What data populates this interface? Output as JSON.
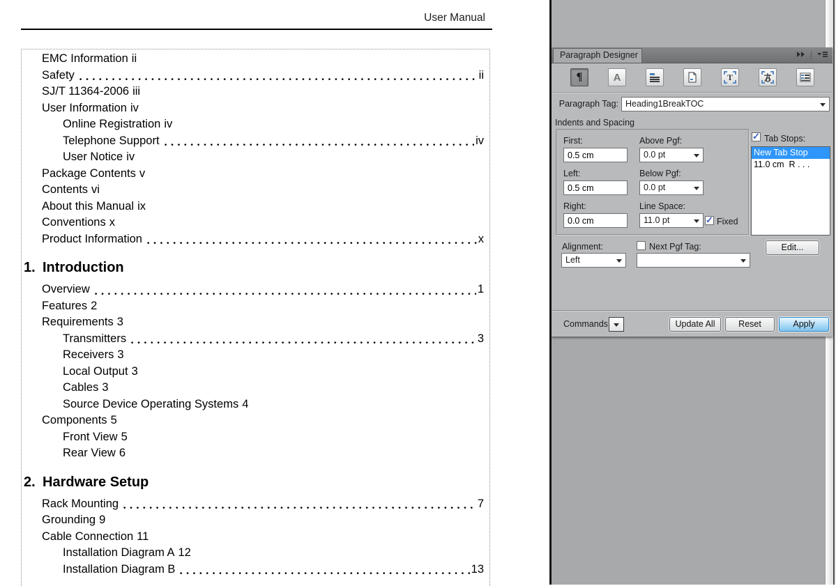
{
  "document": {
    "header_title": "User Manual",
    "toc": {
      "entries": [
        {
          "text": "EMC Information",
          "page": "ii",
          "dots": false,
          "level": 0
        },
        {
          "text": "Safety",
          "page": "ii",
          "dots": true,
          "level": 0
        },
        {
          "text": "SJ/T 11364-2006",
          "page": "iii",
          "dots": false,
          "level": 0
        },
        {
          "text": "User Information",
          "page": "iv",
          "dots": false,
          "level": 0
        },
        {
          "text": "Online Registration",
          "page": "iv",
          "dots": false,
          "level": 1
        },
        {
          "text": "Telephone Support",
          "page": "iv",
          "dots": true,
          "level": 1
        },
        {
          "text": "User Notice",
          "page": "iv",
          "dots": false,
          "level": 1
        },
        {
          "text": "Package Contents",
          "page": "v",
          "dots": false,
          "level": 0
        },
        {
          "text": "Contents",
          "page": "vi",
          "dots": false,
          "level": 0
        },
        {
          "text": "About this Manual",
          "page": "ix",
          "dots": false,
          "level": 0
        },
        {
          "text": "Conventions",
          "page": "x",
          "dots": false,
          "level": 0
        },
        {
          "text": "Product Information",
          "page": "x",
          "dots": true,
          "level": 0
        },
        {
          "heading": true,
          "number": "1.",
          "text": "Introduction"
        },
        {
          "text": "Overview",
          "page": "1",
          "dots": true,
          "level": 0
        },
        {
          "text": "Features",
          "page": "2",
          "dots": false,
          "level": 0
        },
        {
          "text": "Requirements",
          "page": "3",
          "dots": false,
          "level": 0
        },
        {
          "text": "Transmitters",
          "page": "3",
          "dots": true,
          "level": 1
        },
        {
          "text": "Receivers",
          "page": "3",
          "dots": false,
          "level": 1
        },
        {
          "text": "Local Output",
          "page": "3",
          "dots": false,
          "level": 1
        },
        {
          "text": "Cables",
          "page": "3",
          "dots": false,
          "level": 1
        },
        {
          "text": "Source Device Operating Systems",
          "page": "4",
          "dots": false,
          "level": 1
        },
        {
          "text": "Components",
          "page": "5",
          "dots": false,
          "level": 0
        },
        {
          "text": "Front View",
          "page": "5",
          "dots": false,
          "level": 1
        },
        {
          "text": "Rear View",
          "page": "6",
          "dots": false,
          "level": 1
        },
        {
          "heading": true,
          "number": "2.",
          "text": "Hardware Setup"
        },
        {
          "text": "Rack Mounting",
          "page": "7",
          "dots": true,
          "level": 0
        },
        {
          "text": "Grounding",
          "page": "9",
          "dots": false,
          "level": 0
        },
        {
          "text": "Cable Connection",
          "page": "11",
          "dots": false,
          "level": 0
        },
        {
          "text": "Installation Diagram A",
          "page": "12",
          "dots": false,
          "level": 1
        },
        {
          "text": "Installation Diagram B",
          "page": "13",
          "dots": true,
          "level": 1
        }
      ]
    }
  },
  "panel": {
    "title": "Paragraph Designer",
    "toolbar_icons": [
      "basic-properties",
      "default-font",
      "pagination",
      "numbering",
      "advanced",
      "asian",
      "table-cell"
    ],
    "paragraph_tag": {
      "label": "Paragraph Tag:",
      "value": "Heading1BreakTOC"
    },
    "section_title": "Indents and Spacing",
    "fields": {
      "first": {
        "label": "First:",
        "value": "0.5 cm"
      },
      "left": {
        "label": "Left:",
        "value": "0.5 cm"
      },
      "right": {
        "label": "Right:",
        "value": "0.0 cm"
      },
      "above_pgf": {
        "label": "Above Pgf:",
        "value": "0.0 pt"
      },
      "below_pgf": {
        "label": "Below Pgf:",
        "value": "0.0 pt"
      },
      "line_space": {
        "label": "Line Space:",
        "value": "11.0 pt"
      },
      "fixed": {
        "label": "Fixed",
        "checked": true
      }
    },
    "tab_stops": {
      "label": "Tab Stops:",
      "checked": true,
      "items": [
        "New Tab Stop",
        "11.0 cm  R . . ."
      ],
      "selected_index": 0,
      "edit_label": "Edit..."
    },
    "alignment": {
      "label": "Alignment:",
      "value": "Left"
    },
    "next_pgf_tag": {
      "label": "Next Pgf Tag:",
      "checked": false,
      "value": ""
    },
    "commands": {
      "label": "Commands:"
    },
    "buttons": {
      "update_all": "Update All",
      "reset": "Reset",
      "apply": "Apply"
    },
    "colors": {
      "selection_blue": "#2e96fa",
      "apply_blue": "#7fc4ef",
      "apply_border": "#2f87c4"
    }
  }
}
